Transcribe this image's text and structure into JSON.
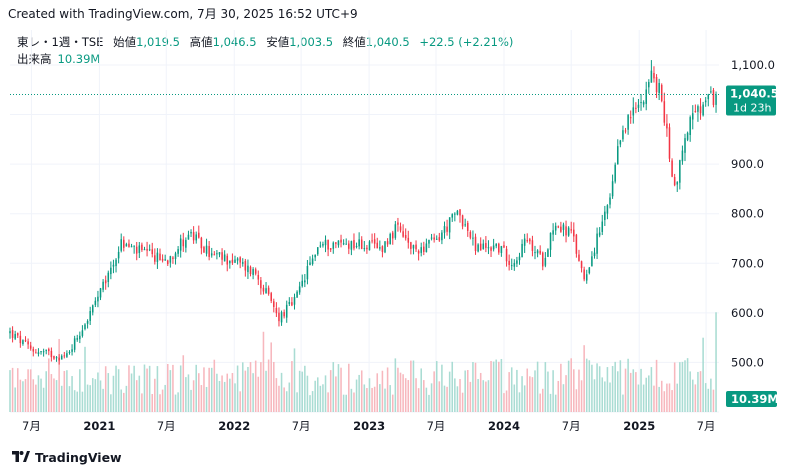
{
  "header": {
    "created_text": "Created with TradingView.com, 7月 30, 2025 16:52 UTC+9"
  },
  "legend": {
    "symbol": "東レ・1週・TSE",
    "open_label": "始値",
    "open_value": "1,019.5",
    "high_label": "高値",
    "high_value": "1,046.5",
    "low_label": "安値",
    "low_value": "1,003.5",
    "close_label": "終値",
    "close_value": "1,040.5",
    "change": "+22.5 (+2.21%)",
    "volume_label": "出来高",
    "volume_value": "10.39M"
  },
  "price_badge": {
    "price": "1,040.5",
    "countdown": "1d 23h"
  },
  "volume_badge": {
    "value": "10.39M"
  },
  "footer": {
    "brand": "TradingView"
  },
  "colors": {
    "up": "#089981",
    "down": "#f23645",
    "up_volume": "#a9dcd3",
    "down_volume": "#f7b7bd",
    "grid": "#f0f3fa",
    "text": "#131722"
  },
  "chart_data": {
    "type": "candlestick",
    "timeframe": "1W",
    "y_ticks": [
      400,
      500,
      600,
      700,
      800,
      900,
      1000,
      1100
    ],
    "y_tick_labels": [
      "",
      "500.0",
      "600.0",
      "700.0",
      "800.0",
      "900.0",
      "",
      "1,100.0"
    ],
    "ylim": [
      400,
      1110
    ],
    "x_tick_labels": [
      "7月",
      "2021",
      "7月",
      "2022",
      "7月",
      "2023",
      "7月",
      "2024",
      "7月",
      "2025",
      "7月"
    ],
    "x_tick_dates": [
      "2020-07-01",
      "2021-01-01",
      "2021-07-01",
      "2022-01-01",
      "2022-07-01",
      "2023-01-01",
      "2023-07-01",
      "2024-01-01",
      "2024-07-01",
      "2025-01-01",
      "2025-07-01"
    ],
    "x_range": [
      "2020-05-04",
      "2025-08-05"
    ],
    "last_price": 1040.5,
    "weekly_close": [
      {
        "date": "2020-05-04",
        "close": 560
      },
      {
        "date": "2020-07-01",
        "close": 525
      },
      {
        "date": "2020-10-01",
        "close": 510
      },
      {
        "date": "2020-12-01",
        "close": 590
      },
      {
        "date": "2021-01-10",
        "close": 650
      },
      {
        "date": "2021-03-01",
        "close": 740
      },
      {
        "date": "2021-05-01",
        "close": 720
      },
      {
        "date": "2021-07-01",
        "close": 705
      },
      {
        "date": "2021-09-01",
        "close": 760
      },
      {
        "date": "2021-11-01",
        "close": 715
      },
      {
        "date": "2022-01-01",
        "close": 705
      },
      {
        "date": "2022-03-01",
        "close": 680
      },
      {
        "date": "2022-05-01",
        "close": 590
      },
      {
        "date": "2022-06-15",
        "close": 625
      },
      {
        "date": "2022-08-15",
        "close": 735
      },
      {
        "date": "2022-10-01",
        "close": 740
      },
      {
        "date": "2022-12-01",
        "close": 740
      },
      {
        "date": "2023-02-01",
        "close": 730
      },
      {
        "date": "2023-03-15",
        "close": 770
      },
      {
        "date": "2023-05-01",
        "close": 725
      },
      {
        "date": "2023-07-01",
        "close": 745
      },
      {
        "date": "2023-09-01",
        "close": 805
      },
      {
        "date": "2023-10-15",
        "close": 730
      },
      {
        "date": "2023-12-15",
        "close": 735
      },
      {
        "date": "2024-01-25",
        "close": 700
      },
      {
        "date": "2024-03-01",
        "close": 745
      },
      {
        "date": "2024-04-15",
        "close": 705
      },
      {
        "date": "2024-05-15",
        "close": 780
      },
      {
        "date": "2024-07-01",
        "close": 760
      },
      {
        "date": "2024-08-05",
        "close": 670
      },
      {
        "date": "2024-09-15",
        "close": 760
      },
      {
        "date": "2024-10-15",
        "close": 830
      },
      {
        "date": "2024-11-15",
        "close": 970
      },
      {
        "date": "2025-01-01",
        "close": 1020
      },
      {
        "date": "2025-02-01",
        "close": 1080
      },
      {
        "date": "2025-03-01",
        "close": 1040
      },
      {
        "date": "2025-04-07",
        "close": 850
      },
      {
        "date": "2025-05-15",
        "close": 985
      },
      {
        "date": "2025-07-28",
        "close": 1040.5
      }
    ],
    "volume_scale_max": 10000000,
    "volume_last": 10390000
  }
}
